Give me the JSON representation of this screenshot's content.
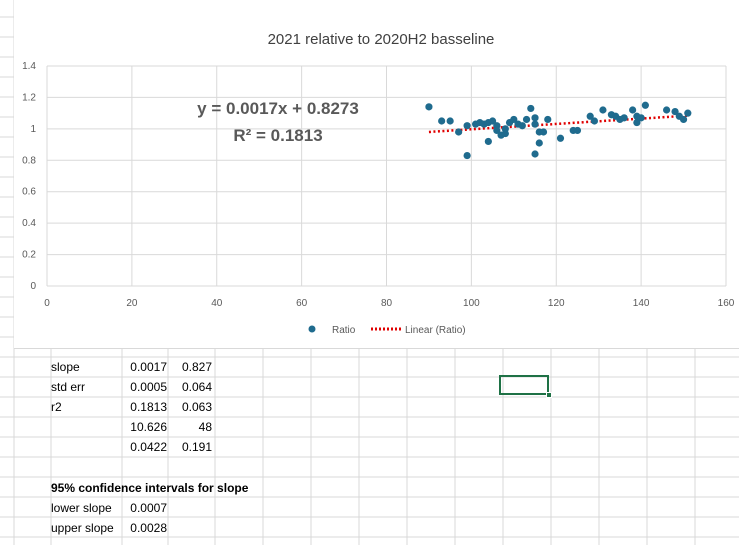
{
  "chart_data": {
    "type": "scatter",
    "title": "2021 relative to 2020H2 basseline",
    "xlim": [
      0,
      160
    ],
    "ylim": [
      0,
      1.4
    ],
    "x_ticks": [
      "0",
      "20",
      "40",
      "60",
      "80",
      "100",
      "120",
      "140",
      "160"
    ],
    "y_ticks": [
      "0",
      "0.2",
      "0.4",
      "0.6",
      "0.8",
      "1",
      "1.2",
      "1.4"
    ],
    "legend": [
      "Ratio",
      "Linear (Ratio)"
    ],
    "trendline": {
      "slope": 0.0017,
      "intercept": 0.8273,
      "x_range": [
        90,
        151
      ]
    },
    "equation": "y = 0.0017x + 0.8273",
    "r_squared_label": "R² = 0.1813",
    "series": [
      {
        "name": "Ratio",
        "x": [
          90,
          93,
          95,
          97,
          99,
          101,
          102,
          103,
          104,
          105,
          106,
          106,
          107,
          108,
          108,
          109,
          110,
          111,
          112,
          113,
          114,
          115,
          115,
          116,
          116,
          117,
          118,
          121,
          124,
          125,
          128,
          129,
          131,
          133,
          134,
          135,
          136,
          138,
          139,
          139,
          140,
          141,
          146,
          148,
          149,
          150,
          151,
          104,
          115,
          99
        ],
        "y": [
          1.14,
          1.05,
          1.05,
          0.98,
          1.02,
          1.03,
          1.04,
          1.03,
          1.04,
          1.05,
          1.02,
          0.99,
          0.96,
          0.97,
          1.0,
          1.04,
          1.06,
          1.03,
          1.02,
          1.06,
          1.13,
          1.03,
          1.07,
          0.98,
          0.91,
          0.98,
          1.06,
          0.94,
          0.99,
          0.99,
          1.08,
          1.05,
          1.12,
          1.09,
          1.08,
          1.06,
          1.07,
          1.12,
          1.08,
          1.04,
          1.07,
          1.15,
          1.12,
          1.11,
          1.08,
          1.06,
          1.1,
          0.92,
          0.84,
          0.83
        ]
      }
    ]
  },
  "stats": {
    "rows": [
      {
        "label": "slope",
        "a": "0.0017",
        "b": "0.827"
      },
      {
        "label": "std err",
        "a": "0.0005",
        "b": "0.064"
      },
      {
        "label": "r2",
        "a": "0.1813",
        "b": "0.063"
      },
      {
        "label": "",
        "a": "10.626",
        "b": "48"
      },
      {
        "label": "",
        "a": "0.0422",
        "b": "0.191"
      }
    ],
    "ci_heading": "95% confidence intervals for slope",
    "lower_label": "lower slope",
    "lower_value": "0.0007",
    "upper_label": "upper slope",
    "upper_value": "0.0028"
  },
  "colors": {
    "marker": "#1f6b8e",
    "trend": "#e00000",
    "grid": "#d9d9d9",
    "text": "#595959",
    "selection": "#1e7145"
  }
}
